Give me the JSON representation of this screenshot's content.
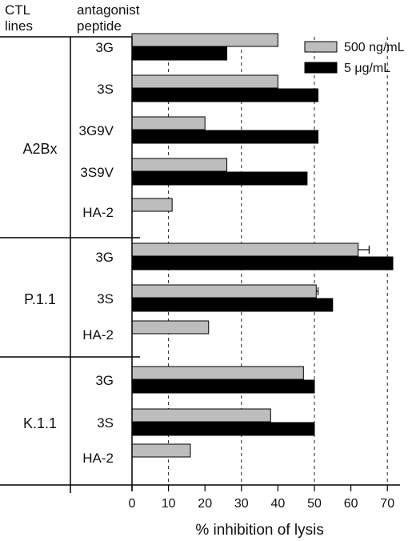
{
  "chart_data": {
    "type": "bar",
    "orientation": "horizontal",
    "headers": {
      "col1": "CTL\nlines",
      "col2": "antagonist\npeptide"
    },
    "groups": [
      {
        "name": "A2Bx",
        "categories": [
          "3G",
          "3S",
          "3G9V",
          "3S9V",
          "HA-2"
        ]
      },
      {
        "name": "P.1.1",
        "categories": [
          "3G",
          "3S",
          "HA-2"
        ]
      },
      {
        "name": "K.1.1",
        "categories": [
          "3G",
          "3S",
          "HA-2"
        ]
      }
    ],
    "series": [
      {
        "name": "500 ng/mL",
        "color": "#bdbdbd",
        "values": [
          40,
          40,
          20,
          26,
          11,
          62,
          50.5,
          21,
          47,
          38,
          16
        ],
        "errors": [
          null,
          null,
          null,
          null,
          null,
          3,
          0.5,
          null,
          null,
          null,
          null
        ]
      },
      {
        "name": "5 μg/mL",
        "color": "#000000",
        "values": [
          26,
          51,
          51,
          48,
          null,
          71.5,
          55,
          null,
          50,
          50,
          null
        ],
        "errors": [
          null,
          null,
          null,
          null,
          null,
          null,
          null,
          null,
          null,
          null,
          null
        ]
      }
    ],
    "xlabel": "% inhibition of lysis",
    "xlim": [
      0,
      75
    ],
    "xticks": [
      0,
      10,
      20,
      30,
      40,
      50,
      60,
      70
    ],
    "gridlines_at": [
      10,
      30,
      50,
      70
    ],
    "grid_style": "dashed vertical",
    "legend_position": "top-right"
  }
}
